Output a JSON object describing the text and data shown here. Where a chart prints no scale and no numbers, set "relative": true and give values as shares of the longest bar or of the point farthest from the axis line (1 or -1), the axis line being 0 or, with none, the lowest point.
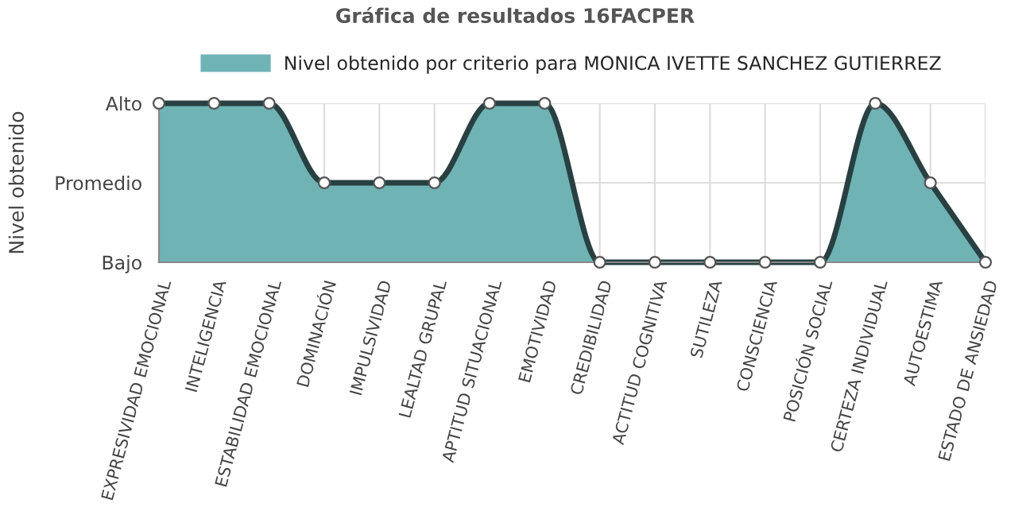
{
  "chart_data": {
    "type": "area",
    "title": "Gráfica de resultados 16FACPER",
    "ylabel": "Nivel obtenido",
    "categories": [
      "EXPRESIVIDAD EMOCIONAL",
      "INTELIGENCIA",
      "ESTABILIDAD EMOCIONAL",
      "DOMINACIÓN",
      "IMPULSIVIDAD",
      "LEALTAD GRUPAL",
      "APTITUD SITUACIONAL",
      "EMOTIVIDAD",
      "CREDIBILIDAD",
      "ACTITUD COGNITIVA",
      "SUTILEZA",
      "CONSCIENCIA",
      "POSICIÓN SOCIAL",
      "CERTEZA INDIVIDUAL",
      "AUTOESTIMA",
      "ESTADO DE ANSIEDAD"
    ],
    "series": [
      {
        "name": "Nivel obtenido por criterio para MONICA IVETTE SANCHEZ GUTIERREZ",
        "color": "#6fb3b5",
        "values": [
          1,
          1,
          1,
          0.5,
          0.5,
          0.5,
          1,
          1,
          0,
          0,
          0,
          0,
          0,
          1,
          0.5,
          0
        ]
      }
    ],
    "relative": true,
    "y_categories": [
      "Alto",
      "Promedio",
      "Bajo"
    ],
    "grid": true,
    "legend": "top",
    "marker": "circle",
    "line_style": "solid"
  }
}
